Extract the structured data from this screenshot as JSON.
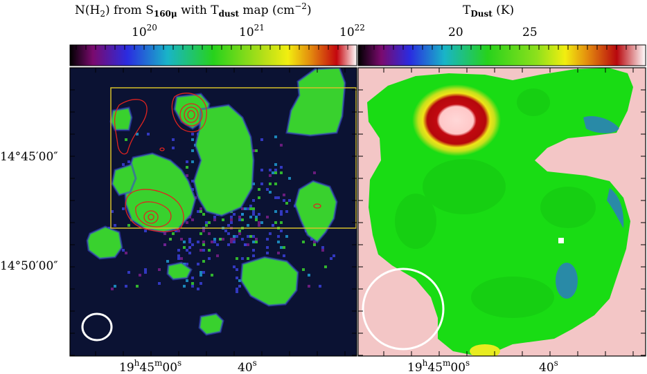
{
  "left_panel": {
    "title_text": "N(H",
    "title_sub1": "2",
    "title_mid": ") from S",
    "title_sub2": "160μ",
    "title_mid2": " with T",
    "title_sub3": "dust",
    "title_end": " map (cm",
    "title_sup": "−2",
    "title_close": ")",
    "colorbar_ticks": [
      {
        "base": "10",
        "exp": "20"
      },
      {
        "base": "10",
        "exp": "21"
      },
      {
        "base": "10",
        "exp": "22"
      }
    ],
    "y_ticks": [
      {
        "deg": "14°45′00″"
      },
      {
        "deg": "14°50′00″"
      }
    ],
    "x_ticks": [
      {
        "h": "19",
        "m": "45",
        "s": "00"
      },
      {
        "s": "40"
      }
    ],
    "colors": {
      "background": "#0b1233",
      "emission": "#39d12e",
      "noise": "#3a3fd8",
      "contour": "#e0231f",
      "box": "#d7bf2a",
      "beam": "#ffffff"
    }
  },
  "right_panel": {
    "title_base": "T",
    "title_sub": "Dust",
    "title_unit": " (K)",
    "colorbar_ticks": [
      "20",
      "25"
    ],
    "x_ticks": [
      {
        "h": "19",
        "m": "45",
        "s": "00"
      },
      {
        "s": "40"
      }
    ],
    "colors": {
      "background": "#f3c6c6",
      "map": "#19dc14",
      "hot_red": "#b8080e",
      "cold_blue": "#2f6fd8",
      "beam": "#ffffff"
    }
  }
}
